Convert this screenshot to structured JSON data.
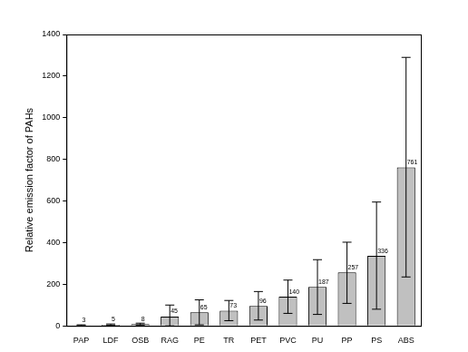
{
  "chart_data": {
    "type": "bar",
    "y_label": "Relative emission factor of PAHs",
    "categories": [
      "PAP",
      "LDF",
      "OSB",
      "RAG",
      "PE",
      "TR",
      "PET",
      "PVC",
      "PU",
      "PP",
      "PS",
      "ABS"
    ],
    "values": [
      3,
      5,
      8,
      45,
      65,
      73,
      96,
      140,
      187,
      257,
      336,
      761
    ],
    "error_low": [
      1,
      2,
      4,
      0,
      5,
      25,
      28,
      60,
      55,
      108,
      80,
      235
    ],
    "error_high": [
      5,
      9,
      13,
      100,
      125,
      122,
      165,
      220,
      318,
      402,
      595,
      1290
    ],
    "color": "#c0c0c0",
    "ylim": [
      0,
      1400
    ],
    "yticks": [
      0,
      200,
      400,
      600,
      800,
      1000,
      1200,
      1400
    ],
    "grid": false,
    "data_labels": true
  }
}
